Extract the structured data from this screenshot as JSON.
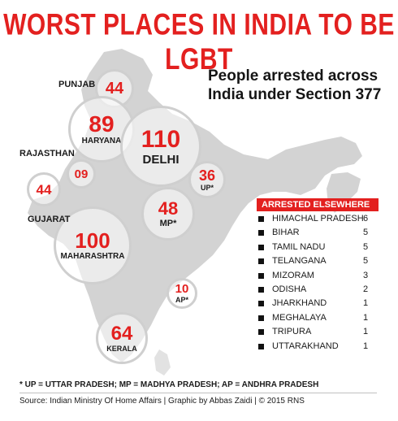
{
  "title": "WORST PLACES IN INDIA TO BE LGBT",
  "subtitle": "People arrested across India under Section 377",
  "colors": {
    "accent": "#e3201f",
    "map": "#d3d3d3",
    "bubble_border": "#cfcfcf"
  },
  "bubbles": [
    {
      "value": "44",
      "label": ""
    },
    {
      "value": "89",
      "label": "HARYANA"
    },
    {
      "value": "110",
      "label": "DELHI"
    },
    {
      "value": "09",
      "label": ""
    },
    {
      "value": "36",
      "label": "UP*"
    },
    {
      "value": "44",
      "label": ""
    },
    {
      "value": "48",
      "label": "MP*"
    },
    {
      "value": "100",
      "label": "MAHARASHTRA"
    },
    {
      "value": "10",
      "label": "AP*"
    },
    {
      "value": "64",
      "label": "KERALA"
    }
  ],
  "outside_labels": {
    "punjab": "PUNJAB",
    "rajasthan": "RAJASTHAN",
    "gujarat": "GUJARAT"
  },
  "elsewhere": {
    "heading": "ARRESTED ELSEWHERE",
    "rows": [
      {
        "state": "HIMACHAL PRADESH",
        "count": "6"
      },
      {
        "state": "BIHAR",
        "count": "5"
      },
      {
        "state": "TAMIL NADU",
        "count": "5"
      },
      {
        "state": "TELANGANA",
        "count": "5"
      },
      {
        "state": "MIZORAM",
        "count": "3"
      },
      {
        "state": "ODISHA",
        "count": "2"
      },
      {
        "state": "JHARKHAND",
        "count": "1"
      },
      {
        "state": "MEGHALAYA",
        "count": "1"
      },
      {
        "state": "TRIPURA",
        "count": "1"
      },
      {
        "state": "UTTARAKHAND",
        "count": "1"
      }
    ]
  },
  "footnote": "* UP = UTTAR PRADESH; MP = MADHYA PRADESH; AP = ANDHRA PRADESH",
  "source": "Source: Indian Ministry Of Home Affairs | Graphic by Abbas Zaidi | © 2015 RNS"
}
